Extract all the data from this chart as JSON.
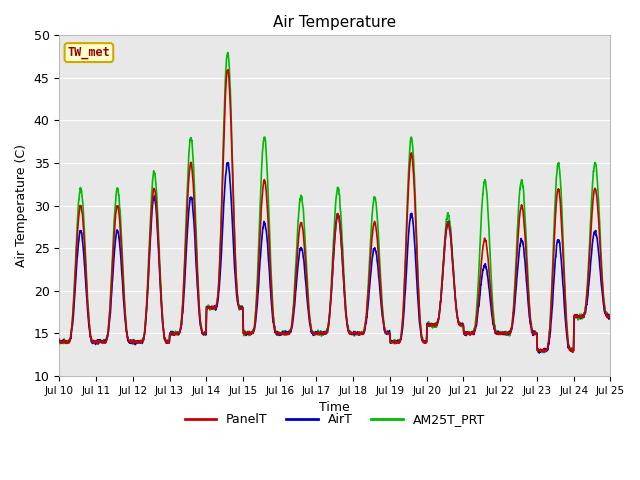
{
  "title": "Air Temperature",
  "xlabel": "Time",
  "ylabel": "Air Temperature (C)",
  "ylim": [
    10,
    50
  ],
  "xlim": [
    0,
    15
  ],
  "annotation_text": "TW_met",
  "annotation_bg": "#ffffcc",
  "annotation_border": "#ccaa00",
  "annotation_color": "#990000",
  "background_color": "#e8e8e8",
  "grid_color": "#ffffff",
  "xtick_labels": [
    "Jul 10",
    "Jul 11",
    "Jul 12",
    "Jul 13",
    "Jul 14",
    "Jul 15",
    "Jul 16",
    "Jul 17",
    "Jul 18",
    "Jul 19",
    "Jul 20",
    "Jul 21",
    "Jul 22",
    "Jul 23",
    "Jul 24",
    "Jul 25"
  ],
  "ytick_values": [
    10,
    15,
    20,
    25,
    30,
    35,
    40,
    45,
    50
  ],
  "PanelT_color": "#cc0000",
  "AirT_color": "#0000cc",
  "AM25T_color": "#00bb00",
  "linewidth": 1.2,
  "legend_labels": [
    "PanelT",
    "AirT",
    "AM25T_PRT"
  ],
  "legend_colors": [
    "#cc0000",
    "#0000cc",
    "#00bb00"
  ],
  "daily_panel_max": [
    30,
    30,
    32,
    35,
    46,
    33,
    28,
    29,
    28,
    36,
    28,
    26,
    30,
    32,
    32
  ],
  "daily_air_max": [
    27,
    27,
    31,
    31,
    35,
    28,
    25,
    29,
    25,
    29,
    28,
    23,
    26,
    26,
    27
  ],
  "daily_am25_max": [
    32,
    32,
    34,
    38,
    48,
    38,
    31,
    32,
    31,
    38,
    29,
    33,
    33,
    35,
    35
  ],
  "daily_min": [
    14,
    14,
    14,
    15,
    18,
    15,
    15,
    15,
    15,
    14,
    16,
    15,
    15,
    13,
    17
  ]
}
